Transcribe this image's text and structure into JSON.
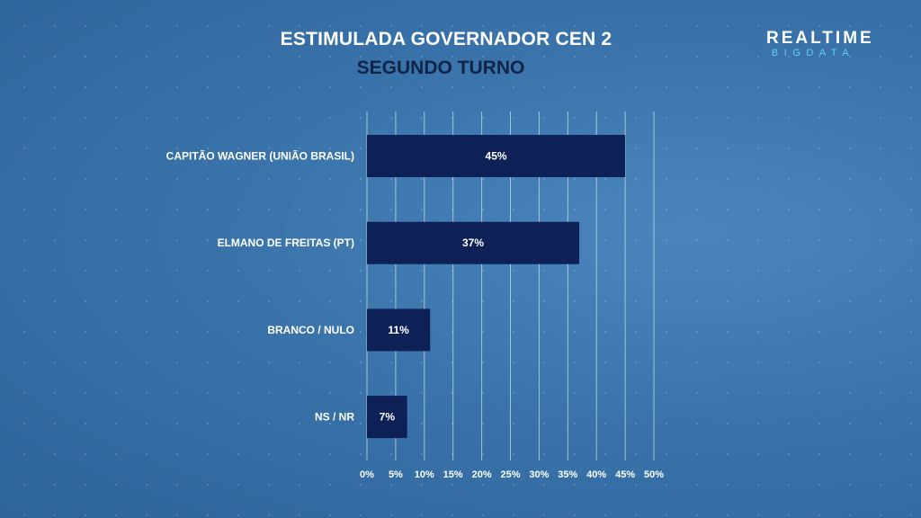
{
  "brand": {
    "line1": "REALTIME",
    "line2": "BIGDATA",
    "line2_color": "#5fd0f0"
  },
  "chart_data": {
    "type": "bar",
    "orientation": "horizontal",
    "title": "ESTIMULADA GOVERNADOR CEN 2",
    "subtitle": "SEGUNDO TURNO",
    "categories": [
      "CAPITÃO WAGNER (UNIÃO BRASIL)",
      "ELMANO DE FREITAS (PT)",
      "BRANCO / NULO",
      "NS / NR"
    ],
    "values": [
      45,
      37,
      11,
      7
    ],
    "value_labels": [
      "45%",
      "37%",
      "11%",
      "7%"
    ],
    "x_ticks": [
      "0%",
      "5%",
      "10%",
      "15%",
      "20%",
      "25%",
      "30%",
      "35%",
      "40%",
      "45%",
      "50%"
    ],
    "xlim": [
      0,
      50
    ],
    "grid": true,
    "legend": "none",
    "bar_color": "#0d2157",
    "background_color": "#3a74ab"
  }
}
